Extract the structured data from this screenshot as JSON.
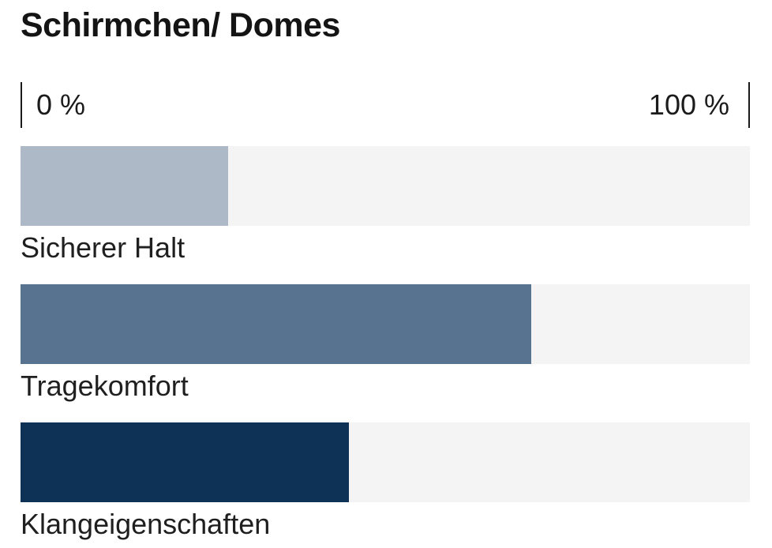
{
  "title": "Schirmchen/ Domes",
  "axis": {
    "min_label": "0 %",
    "max_label": "100 %"
  },
  "colors": {
    "bar_light": "#adb9c6",
    "bar_medium": "#587390",
    "bar_dark": "#0d3256",
    "track": "#f4f4f5",
    "tick": "#1a1a1a",
    "text": "#1b1b1b"
  },
  "chart_data": {
    "type": "bar",
    "orientation": "horizontal",
    "title": "Schirmchen/ Domes",
    "categories": [
      "Sicherer Halt",
      "Tragekomfort",
      "Klangeigenschaften"
    ],
    "values": [
      28.5,
      70,
      45
    ],
    "unit": "%",
    "xlim": [
      0,
      100
    ],
    "xtick_labels": [
      "0 %",
      "100 %"
    ],
    "bar_colors": [
      "#adb9c6",
      "#587390",
      "#0d3256"
    ],
    "track_color": "#f4f4f5",
    "grid": false,
    "legend": false,
    "value_labels_shown": false
  }
}
